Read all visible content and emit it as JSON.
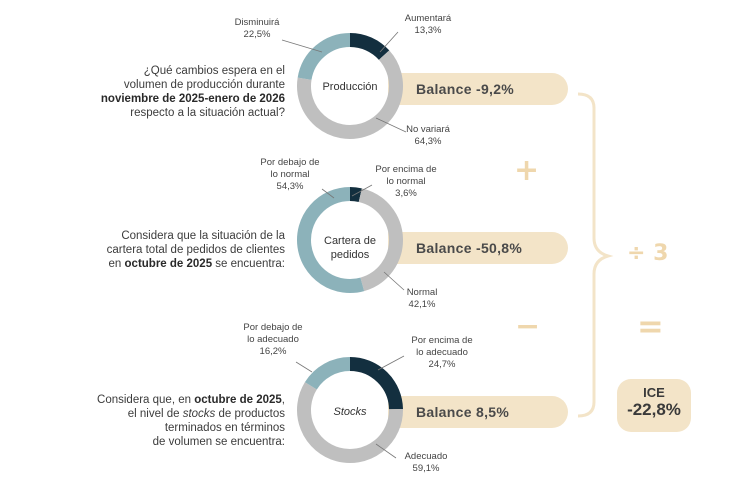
{
  "colors": {
    "dark": "#132f3f",
    "teal": "#8cb2ba",
    "grey": "#bfbfbf",
    "beige": "#f3e4c8"
  },
  "sections": [
    {
      "question": [
        [
          "¿Qué cambios espera en el",
          false
        ],
        [
          "volumen de producción durante",
          false
        ],
        [
          "noviembre de 2025-enero de 2026",
          true
        ],
        [
          "respecto a la situación actual?",
          false
        ]
      ],
      "center": "Producción",
      "balance": "Balance  -9,2%",
      "labels": {
        "up": "Aumentará\n13,3%",
        "down": "Disminuirá\n22,5%",
        "same": "No variará\n64,3%"
      }
    },
    {
      "question": [
        [
          "Considera que la situación de la",
          false
        ],
        [
          "cartera total de pedidos de clientes",
          false
        ],
        [
          "en |octubre de 2025| se encuentra:",
          "mixed"
        ]
      ],
      "center": "Cartera de\npedidos",
      "balance": "Balance  -50,8%",
      "labels": {
        "up": "Por encima de\nlo normal\n3,6%",
        "down": "Por debajo de\nlo normal\n54,3%",
        "same": "Normal\n42,1%"
      }
    },
    {
      "question": [
        [
          "Considera que, en |octubre de 2025|,",
          "mixed"
        ],
        [
          "el nivel de |stocks| de productos",
          "italic"
        ],
        [
          "terminados en términos",
          false
        ],
        [
          "de volumen se encuentra:",
          false
        ]
      ],
      "center": "Stocks",
      "balance": "Balance  8,5%",
      "labels": {
        "up": "Por encima de\nlo adecuado\n24,7%",
        "down": "Por debajo de\nlo adecuado\n16,2%",
        "same": "Adecuado\n59,1%"
      }
    }
  ],
  "operators": {
    "plus": "+",
    "minus": "−",
    "divide": "÷ 3",
    "equals": "="
  },
  "ice": {
    "title": "ICE",
    "value": "-22,8%"
  },
  "chart_data": [
    {
      "type": "pie",
      "title": "Producción",
      "categories": [
        "Aumentará",
        "No variará",
        "Disminuirá"
      ],
      "values": [
        13.3,
        64.3,
        22.5
      ],
      "balance": -9.2
    },
    {
      "type": "pie",
      "title": "Cartera de pedidos",
      "categories": [
        "Por encima de lo normal",
        "Normal",
        "Por debajo de lo normal"
      ],
      "values": [
        3.6,
        42.1,
        54.3
      ],
      "balance": -50.8
    },
    {
      "type": "pie",
      "title": "Stocks",
      "categories": [
        "Por encima de lo adecuado",
        "Adecuado",
        "Por debajo de lo adecuado"
      ],
      "values": [
        24.7,
        59.1,
        16.2
      ],
      "balance": 8.5
    }
  ]
}
